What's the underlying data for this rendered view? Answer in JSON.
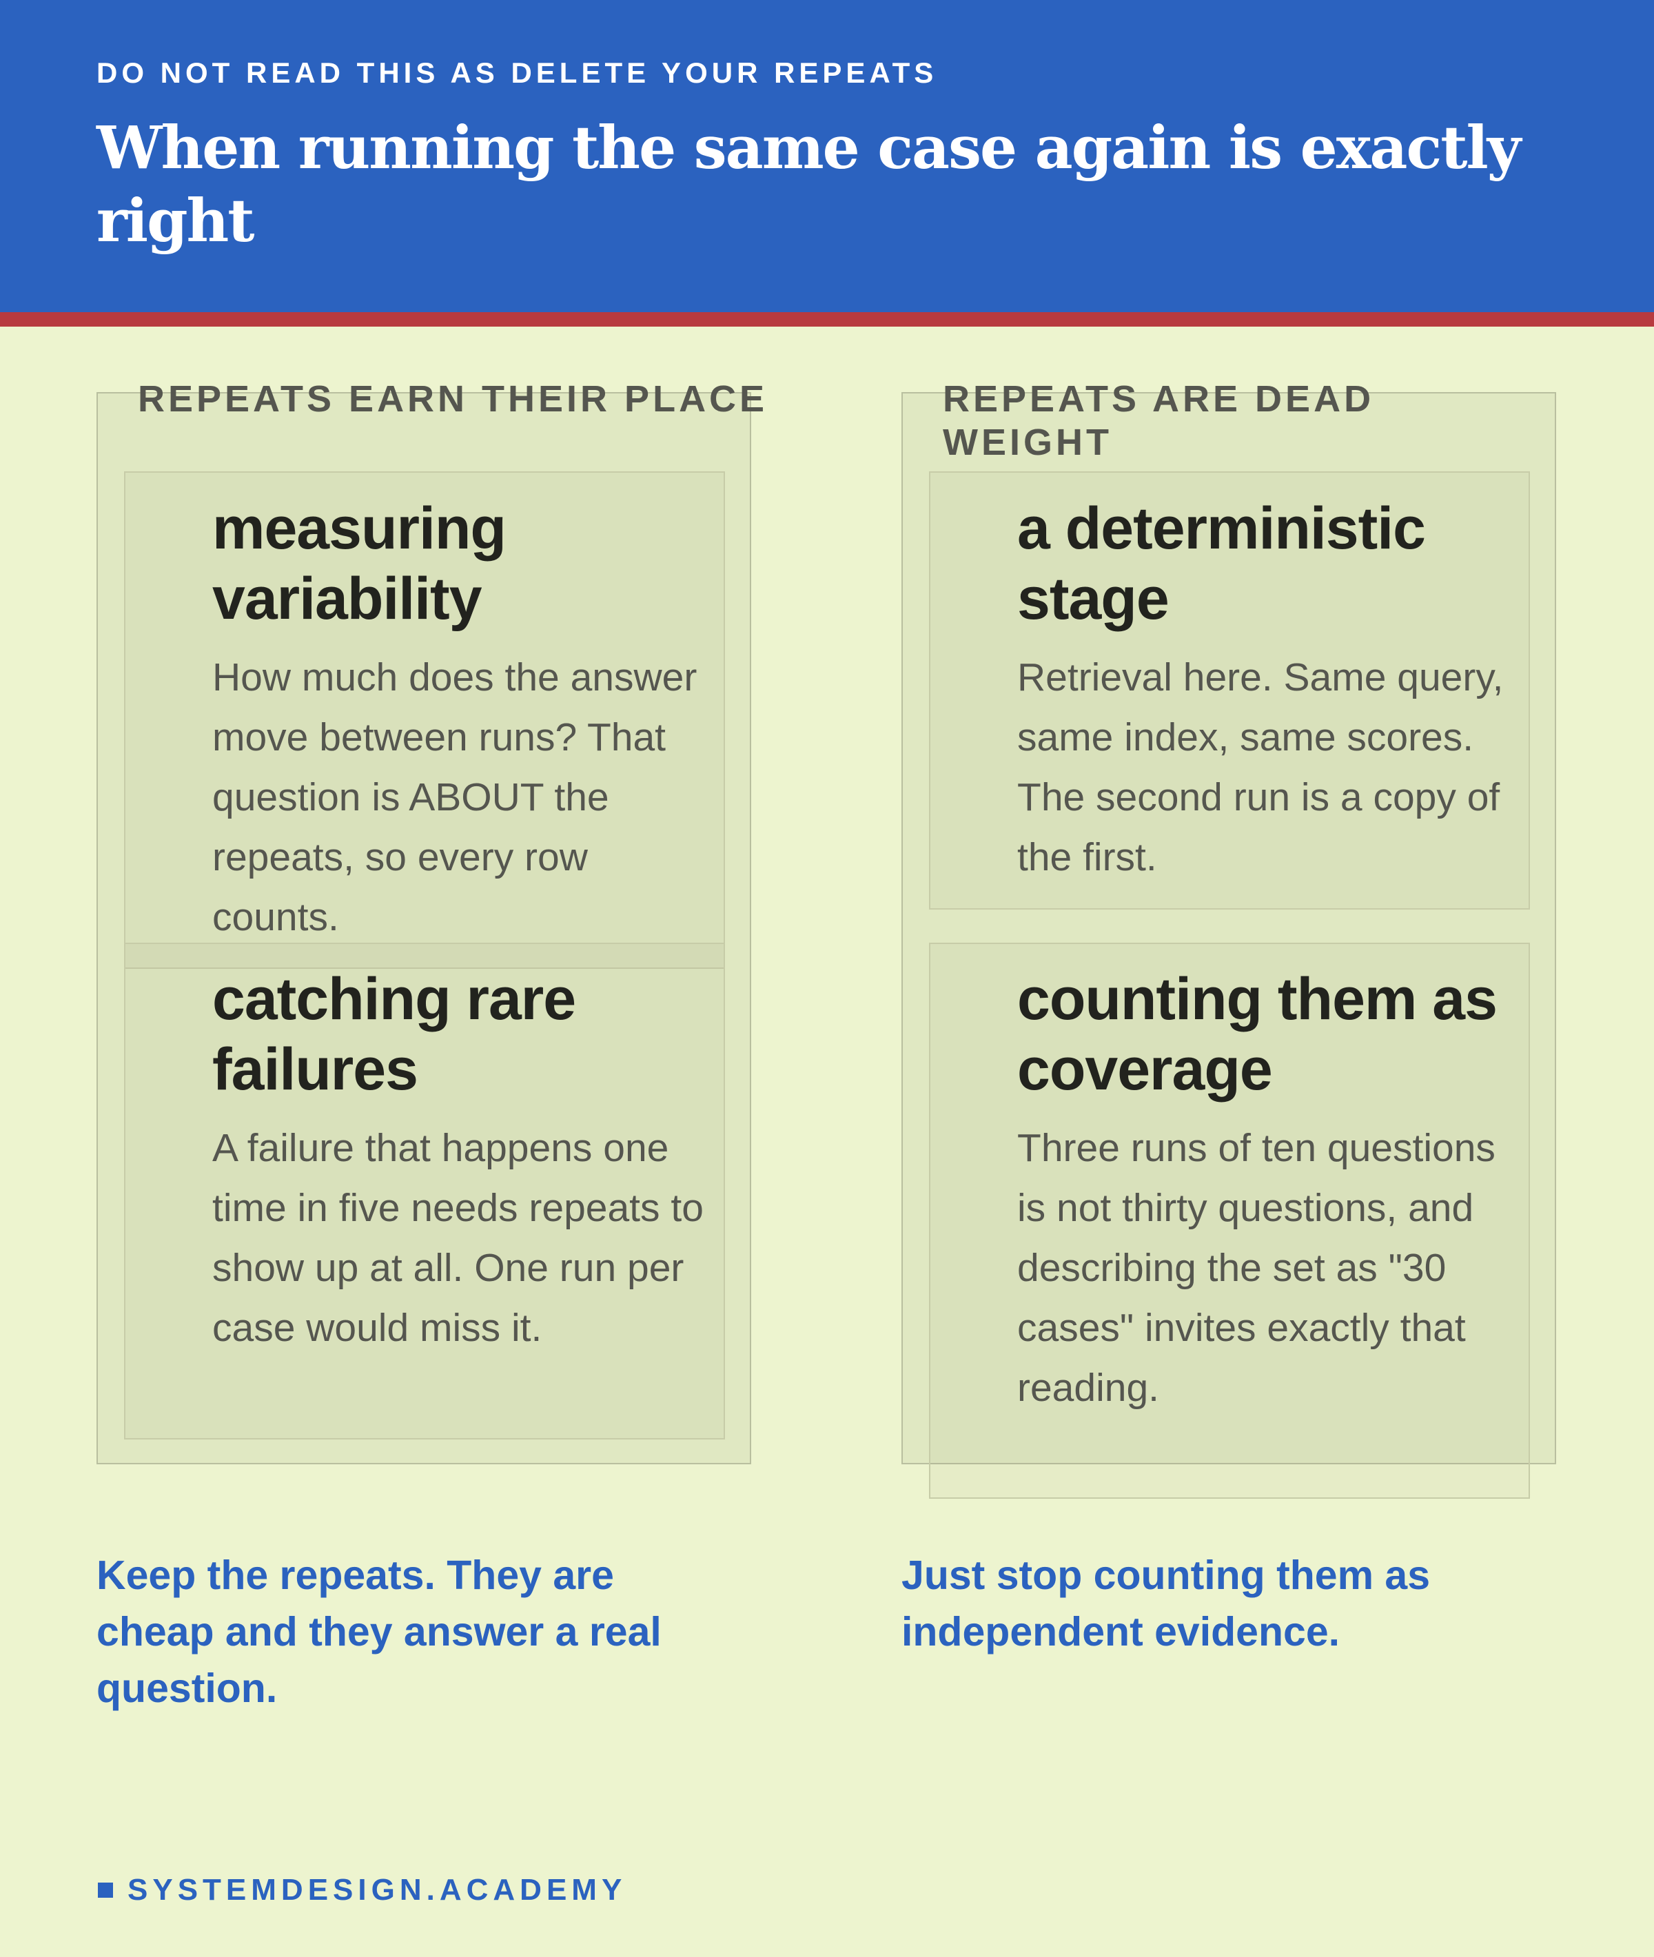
{
  "header": {
    "kicker": "DO NOT READ THIS AS DELETE YOUR REPEATS",
    "title": "When running the same case again is exactly right",
    "accent_color": "#2b62bf",
    "rule_color": "#b73a3f"
  },
  "columns": [
    {
      "label": "REPEATS EARN THEIR PLACE",
      "cards": [
        {
          "title": "measuring variability",
          "body": "How much does the answer move between runs? That question is ABOUT the repeats, so every row counts."
        },
        {
          "title": "catching rare failures",
          "body": "A failure that happens one time in five needs repeats to show up at all. One run per case would miss it."
        }
      ],
      "takeaway": "Keep the repeats. They are cheap and they answer a real question."
    },
    {
      "label": "REPEATS ARE DEAD WEIGHT",
      "cards": [
        {
          "title": "a deterministic stage",
          "body": "Retrieval here. Same query, same index, same scores. The second run is a copy of the first."
        },
        {
          "title": "counting them as coverage",
          "body": "Three runs of ten questions is not thirty questions, and describing the set as \"30 cases\" invites exactly that reading."
        }
      ],
      "takeaway": "Just stop counting them as independent evidence."
    }
  ],
  "footer": {
    "brand": "SYSTEMDESIGN.ACADEMY"
  }
}
